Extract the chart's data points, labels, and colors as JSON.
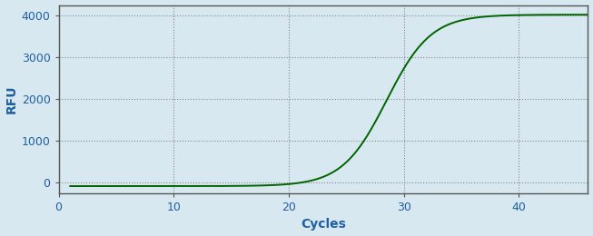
{
  "title": "",
  "xlabel": "Cycles",
  "ylabel": "RFU",
  "line_color": "#006400",
  "line_width": 1.4,
  "background_color": "#d8e8f0",
  "plot_bg_color": "#d8e8f0",
  "grid_color": "#888888",
  "border_color": "#555555",
  "xlim": [
    0,
    46
  ],
  "ylim": [
    -250,
    4250
  ],
  "yticks": [
    0,
    1000,
    2000,
    3000,
    4000
  ],
  "xticks": [
    0,
    10,
    20,
    30,
    40
  ],
  "tick_label_color": "#2060a0",
  "axis_label_color": "#2060a0",
  "sigmoid_L": 4100,
  "sigmoid_k": 0.52,
  "sigmoid_x0": 28.5,
  "sigmoid_baseline": -80,
  "x_start": 1,
  "x_end": 46,
  "figsize": [
    6.53,
    2.6
  ],
  "dpi": 100
}
